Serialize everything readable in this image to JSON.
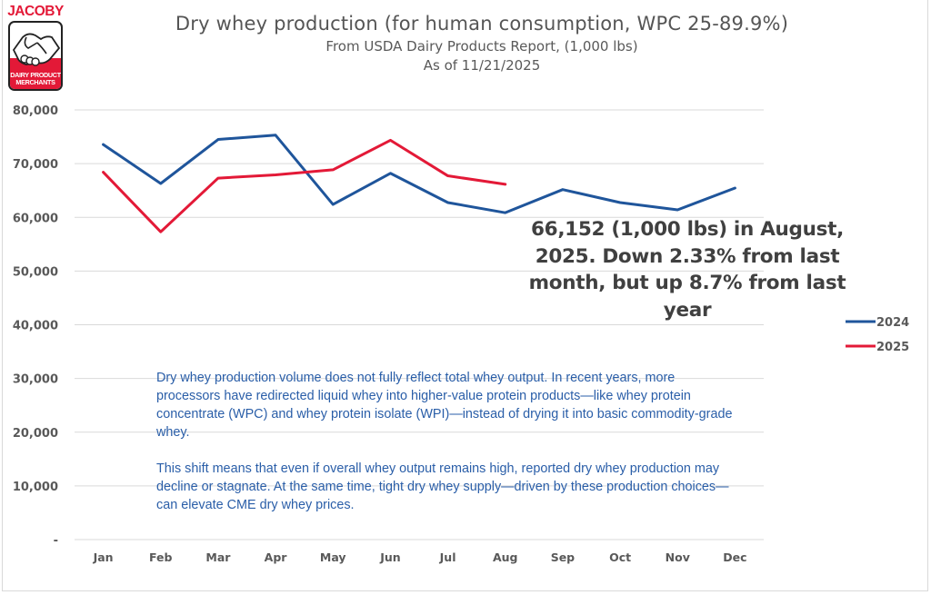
{
  "logo": {
    "brand": "JACOBY",
    "tagline_line1": "DAIRY PRODUCT",
    "tagline_line2": "MERCHANTS",
    "brand_color": "#e31937"
  },
  "header": {
    "title": "Dry whey production (for human consumption, WPC 25-89.9%)",
    "subtitle": "From USDA Dairy Products Report, (1,000 lbs)",
    "as_of": "As of 11/21/2025"
  },
  "annotation": {
    "text": "66,152  (1,000 lbs) in August, 2025. Down 2.33% from last month, but up 8.7% from last year"
  },
  "note": {
    "paragraph1": "Dry whey production volume does not fully reflect total whey output. In recent years, more processors have redirected liquid whey into higher-value protein products—like whey protein concentrate (WPC) and whey protein isolate (WPI)—instead of drying it into basic commodity-grade whey.",
    "paragraph2": "This shift means that even if overall whey output remains high, reported dry whey production may decline or stagnate. At the same time, tight dry whey supply—driven by these production choices—can elevate CME dry whey prices."
  },
  "chart_data": {
    "type": "line",
    "title": "Dry whey production (for human consumption, WPC 25-89.9%)",
    "subtitle": "From USDA Dairy Products Report, (1,000 lbs) — As of 11/21/2025",
    "xlabel": "",
    "ylabel": "",
    "categories": [
      "Jan",
      "Feb",
      "Mar",
      "Apr",
      "May",
      "Jun",
      "Jul",
      "Aug",
      "Sep",
      "Oct",
      "Nov",
      "Dec"
    ],
    "ylim": [
      0,
      80000
    ],
    "yticks": [
      0,
      10000,
      20000,
      30000,
      40000,
      50000,
      60000,
      70000,
      80000
    ],
    "ytick_labels": [
      "-",
      "10,000",
      "20,000",
      "30,000",
      "40,000",
      "50,000",
      "60,000",
      "70,000",
      "80,000"
    ],
    "grid": true,
    "legend_position": "right",
    "series": [
      {
        "name": "2024",
        "color": "#1f559b",
        "values": [
          73550,
          66300,
          74500,
          75300,
          62400,
          68200,
          62750,
          60860,
          65170,
          62750,
          61400,
          65450
        ]
      },
      {
        "name": "2025",
        "color": "#e31937",
        "values": [
          68400,
          57300,
          67300,
          67900,
          68850,
          74350,
          67730,
          66152
        ]
      }
    ]
  }
}
